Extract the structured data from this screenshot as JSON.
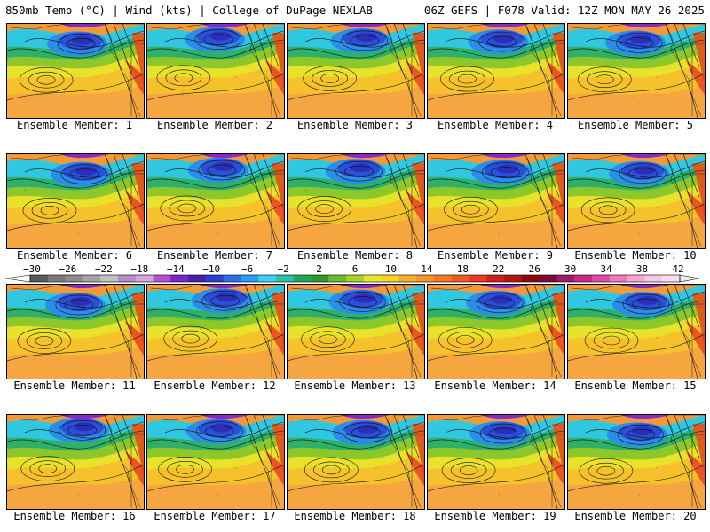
{
  "header": {
    "left": "850mb Temp (°C) | Wind (kts) | College of DuPage NEXLAB",
    "right": "06Z GEFS | F078 Valid: 12Z MON MAY 26 2025"
  },
  "members": [
    {
      "label": "Ensemble Member: 1"
    },
    {
      "label": "Ensemble Member: 2"
    },
    {
      "label": "Ensemble Member: 3"
    },
    {
      "label": "Ensemble Member: 4"
    },
    {
      "label": "Ensemble Member: 5"
    },
    {
      "label": "Ensemble Member: 6"
    },
    {
      "label": "Ensemble Member: 7"
    },
    {
      "label": "Ensemble Member: 8"
    },
    {
      "label": "Ensemble Member: 9"
    },
    {
      "label": "Ensemble Member: 10"
    },
    {
      "label": "Ensemble Member: 11"
    },
    {
      "label": "Ensemble Member: 12"
    },
    {
      "label": "Ensemble Member: 13"
    },
    {
      "label": "Ensemble Member: 14"
    },
    {
      "label": "Ensemble Member: 15"
    },
    {
      "label": "Ensemble Member: 16"
    },
    {
      "label": "Ensemble Member: 17"
    },
    {
      "label": "Ensemble Member: 18"
    },
    {
      "label": "Ensemble Member: 19"
    },
    {
      "label": "Ensemble Member: 20"
    }
  ],
  "colorbar": {
    "labels": [
      "−30",
      "−26",
      "−22",
      "−18",
      "−14",
      "−10",
      "−6",
      "−2",
      "2",
      "6",
      "10",
      "14",
      "18",
      "22",
      "26",
      "30",
      "34",
      "38",
      "42"
    ],
    "colors": [
      "#5a5a5a",
      "#7a7a7a",
      "#8c8c8c",
      "#a3a3a3",
      "#c2c2c2",
      "#b58cc6",
      "#d4a6e0",
      "#b84fd0",
      "#7a26c8",
      "#4a1ea8",
      "#2a3ed0",
      "#2a6fe8",
      "#2a9ef0",
      "#3ccff0",
      "#2ec0a0",
      "#1ea85a",
      "#2e9a2e",
      "#6abd2a",
      "#a8d42a",
      "#e8e82a",
      "#f6d22a",
      "#f6b02a",
      "#f6952a",
      "#f27a22",
      "#ee5a1e",
      "#e83a1e",
      "#d21e1e",
      "#b01414",
      "#8a0a0a",
      "#7a0a3a",
      "#a01a6a",
      "#c82a8a",
      "#e04aa8",
      "#f07ac0",
      "#f6a6d4",
      "#f8c6e6",
      "#fadcf0"
    ]
  }
}
